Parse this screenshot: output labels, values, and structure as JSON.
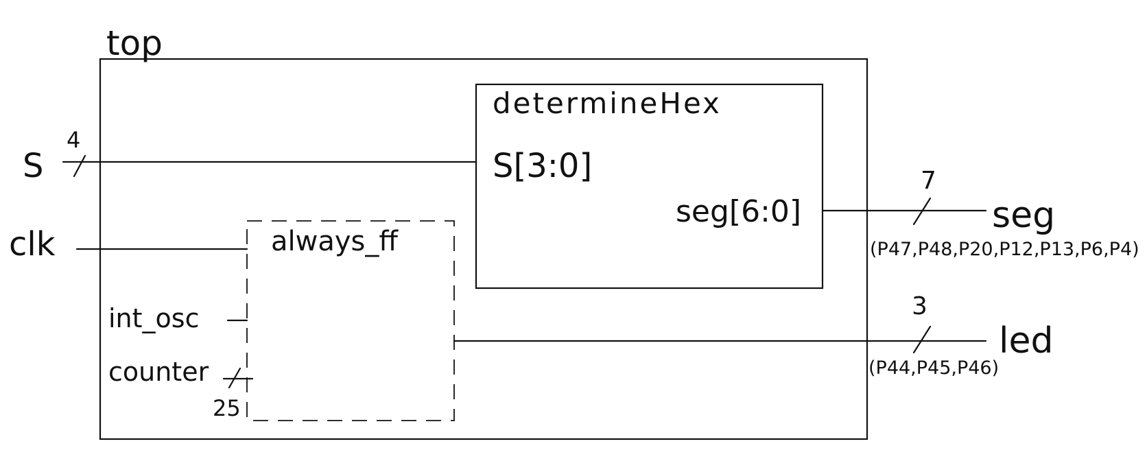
{
  "top_module": {
    "label": "top"
  },
  "determine_hex": {
    "label": "determineHex",
    "input_port": "S[3:0]",
    "output_port": "seg[6:0]"
  },
  "always_block": {
    "label": "always_ff",
    "inputs": [
      "int_osc",
      "counter"
    ],
    "counter_width": "25"
  },
  "inputs": {
    "s": {
      "label": "S",
      "width": "4"
    },
    "clk": {
      "label": "clk"
    }
  },
  "outputs": {
    "seg": {
      "label": "seg",
      "width": "7",
      "pins": "(P47,P48,P20,P12,P13,P6,P4)"
    },
    "led": {
      "label": "led",
      "width": "3",
      "pins": "(P44,P45,P46)"
    }
  }
}
